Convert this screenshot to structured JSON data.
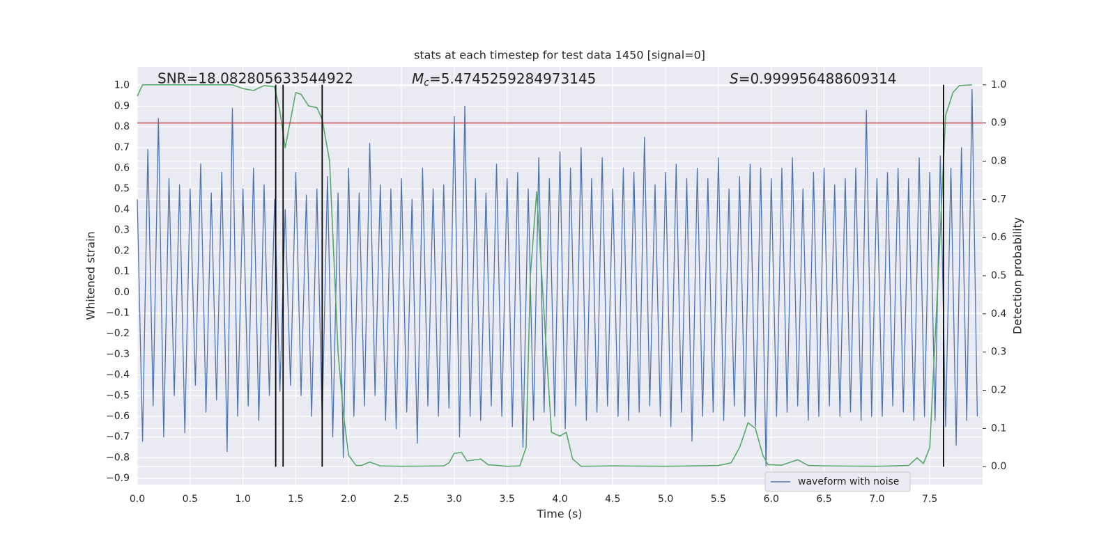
{
  "chart_data": {
    "type": "line",
    "title": "stats at each timestep for test data 1450 [signal=0]",
    "xlabel": "Time (s)",
    "ylabel": "Whitened strain",
    "y2label": "Detection probability",
    "annotations": {
      "snr": "SNR=18.082805633544922",
      "mc": {
        "symbol": "M",
        "subscript": "c",
        "text": "=5.4745259284973145"
      },
      "s": {
        "symbol": "S",
        "text": "=0.999956488609314"
      }
    },
    "xlim": [
      0,
      8
    ],
    "ylim": [
      -0.93,
      1.09
    ],
    "y2lim": [
      -0.047,
      1.047
    ],
    "xticks": [
      {
        "value": 0,
        "label": "0.0"
      },
      {
        "value": 0.5,
        "label": "0.5"
      },
      {
        "value": 1,
        "label": "1.0"
      },
      {
        "value": 1.5,
        "label": "1.5"
      },
      {
        "value": 2,
        "label": "2.0"
      },
      {
        "value": 2.5,
        "label": "2.5"
      },
      {
        "value": 3,
        "label": "3.0"
      },
      {
        "value": 3.5,
        "label": "3.5"
      },
      {
        "value": 4,
        "label": "4.0"
      },
      {
        "value": 4.5,
        "label": "4.5"
      },
      {
        "value": 5,
        "label": "5.0"
      },
      {
        "value": 5.5,
        "label": "5.5"
      },
      {
        "value": 6,
        "label": "6.0"
      },
      {
        "value": 6.5,
        "label": "6.5"
      },
      {
        "value": 7,
        "label": "7.0"
      },
      {
        "value": 7.5,
        "label": "7.5"
      }
    ],
    "yticks": [
      {
        "value": -0.9,
        "label": "−0.9"
      },
      {
        "value": -0.8,
        "label": "−0.8"
      },
      {
        "value": -0.7,
        "label": "−0.7"
      },
      {
        "value": -0.6,
        "label": "−0.6"
      },
      {
        "value": -0.5,
        "label": "−0.5"
      },
      {
        "value": -0.4,
        "label": "−0.4"
      },
      {
        "value": -0.3,
        "label": "−0.3"
      },
      {
        "value": -0.2,
        "label": "−0.2"
      },
      {
        "value": -0.1,
        "label": "−0.1"
      },
      {
        "value": 0,
        "label": "0.0"
      },
      0.1,
      0.2,
      0.3,
      0.4,
      0.5,
      0.6,
      0.7,
      0.8,
      0.9,
      {
        "value": 1,
        "label": "1.0"
      }
    ],
    "y2ticks": [
      {
        "value": 0,
        "label": "0.0"
      },
      0.1,
      0.2,
      0.3,
      0.4,
      0.5,
      0.6,
      0.7,
      0.8,
      0.9,
      {
        "value": 1,
        "label": "1.0"
      }
    ],
    "grid": true,
    "legend": "lower right",
    "series": [
      {
        "name": "waveform with noise",
        "color": "#4c72b0",
        "x": [
          0,
          0.05,
          0.1,
          0.15,
          0.2,
          0.25,
          0.3,
          0.35,
          0.4,
          0.45,
          0.5,
          0.55,
          0.6,
          0.65,
          0.7,
          0.75,
          0.8,
          0.85,
          0.9,
          0.95,
          1,
          1.05,
          1.1,
          1.15,
          1.2,
          1.25,
          1.3,
          1.35,
          1.4,
          1.45,
          1.5,
          1.55,
          1.6,
          1.65,
          1.7,
          1.75,
          1.8,
          1.85,
          1.9,
          1.95,
          2,
          2.05,
          2.1,
          2.15,
          2.2,
          2.25,
          2.3,
          2.35,
          2.4,
          2.45,
          2.5,
          2.55,
          2.6,
          2.65,
          2.7,
          2.75,
          2.8,
          2.85,
          2.9,
          2.95,
          3,
          3.05,
          3.1,
          3.15,
          3.2,
          3.25,
          3.3,
          3.35,
          3.4,
          3.45,
          3.5,
          3.55,
          3.6,
          3.65,
          3.7,
          3.75,
          3.8,
          3.85,
          3.9,
          3.95,
          4,
          4.05,
          4.1,
          4.15,
          4.2,
          4.25,
          4.3,
          4.35,
          4.4,
          4.45,
          4.5,
          4.55,
          4.6,
          4.65,
          4.7,
          4.75,
          4.8,
          4.85,
          4.9,
          4.95,
          5,
          5.05,
          5.1,
          5.15,
          5.2,
          5.25,
          5.3,
          5.35,
          5.4,
          5.45,
          5.5,
          5.55,
          5.6,
          5.65,
          5.7,
          5.75,
          5.8,
          5.85,
          5.9,
          5.95,
          6,
          6.05,
          6.1,
          6.15,
          6.2,
          6.25,
          6.3,
          6.35,
          6.4,
          6.45,
          6.5,
          6.55,
          6.6,
          6.65,
          6.7,
          6.75,
          6.8,
          6.85,
          6.9,
          6.95,
          7,
          7.05,
          7.1,
          7.15,
          7.2,
          7.25,
          7.3,
          7.35,
          7.4,
          7.45,
          7.5,
          7.55,
          7.6,
          7.65,
          7.7,
          7.75,
          7.8,
          7.85,
          7.9,
          7.95
        ],
        "values": [
          0.45,
          -0.72,
          0.69,
          -0.55,
          0.84,
          -0.7,
          0.55,
          -0.5,
          0.52,
          -0.68,
          0.5,
          -0.45,
          0.62,
          -0.58,
          0.48,
          -0.52,
          0.58,
          -0.77,
          0.89,
          -0.6,
          0.5,
          -0.55,
          0.6,
          -0.62,
          0.52,
          -0.5,
          0.45,
          -0.48,
          0.4,
          -0.45,
          0.58,
          -0.5,
          0.47,
          -0.6,
          0.5,
          -0.62,
          0.56,
          -0.7,
          0.48,
          -0.8,
          0.6,
          -0.6,
          0.48,
          -0.55,
          0.72,
          -0.5,
          0.52,
          -0.62,
          0.5,
          -0.66,
          0.55,
          -0.58,
          0.45,
          -0.73,
          0.6,
          -0.55,
          0.5,
          -0.6,
          0.52,
          -0.56,
          0.85,
          -0.7,
          0.9,
          -0.6,
          0.55,
          -0.62,
          0.48,
          -0.55,
          0.62,
          -0.6,
          0.55,
          -0.65,
          0.58,
          -0.75,
          0.5,
          -0.62,
          0.65,
          -0.58,
          0.55,
          -0.6,
          0.68,
          -0.66,
          0.6,
          -0.55,
          0.7,
          -0.62,
          0.55,
          -0.58,
          0.65,
          -0.55,
          0.5,
          -0.6,
          0.6,
          -0.62,
          0.58,
          -0.58,
          0.75,
          -0.55,
          0.52,
          -0.6,
          0.58,
          -0.65,
          0.62,
          -0.58,
          0.55,
          -0.72,
          0.6,
          -0.6,
          0.55,
          -0.58,
          0.65,
          -0.62,
          0.5,
          -0.55,
          0.56,
          -0.6,
          0.62,
          -0.65,
          0.6,
          -0.84,
          0.55,
          -0.6,
          0.6,
          -0.58,
          0.65,
          -0.55,
          0.5,
          -0.62,
          0.58,
          -0.6,
          0.6,
          -0.55,
          0.52,
          -0.6,
          0.55,
          -0.58,
          0.6,
          -0.62,
          0.88,
          -0.6,
          0.55,
          -0.6,
          0.58,
          -0.55,
          0.6,
          -0.58,
          0.55,
          -0.62,
          0.65,
          -0.6,
          0.58,
          -0.62,
          0.66,
          -0.65,
          0.6,
          -0.74,
          0.7,
          -0.62,
          0.98,
          -0.6
        ]
      },
      {
        "color": "#55a868",
        "axis": "y2",
        "x": [
          0,
          0.05,
          0.9,
          1.0,
          1.1,
          1.2,
          1.3,
          1.35,
          1.4,
          1.5,
          1.55,
          1.62,
          1.7,
          1.75,
          1.82,
          1.9,
          1.95,
          2.0,
          2.07,
          2.12,
          2.2,
          2.3,
          2.5,
          2.9,
          2.95,
          3.0,
          3.07,
          3.12,
          3.25,
          3.32,
          3.5,
          3.62,
          3.68,
          3.72,
          3.78,
          3.85,
          3.92,
          4.0,
          4.06,
          4.12,
          4.2,
          4.5,
          5.0,
          5.5,
          5.62,
          5.7,
          5.78,
          5.85,
          5.92,
          5.97,
          6.1,
          6.25,
          6.35,
          6.5,
          7.0,
          7.3,
          7.38,
          7.44,
          7.5,
          7.58,
          7.65,
          7.72,
          7.78,
          7.9
        ],
        "values": [
          0.97,
          1.0,
          1.0,
          0.99,
          0.985,
          0.998,
          0.995,
          0.93,
          0.835,
          0.98,
          0.975,
          0.945,
          0.94,
          0.91,
          0.8,
          0.3,
          0.14,
          0.03,
          0.003,
          0.003,
          0.012,
          0.002,
          0.001,
          0.002,
          0.01,
          0.035,
          0.037,
          0.015,
          0.02,
          0.005,
          0.001,
          0.002,
          0.05,
          0.5,
          0.72,
          0.4,
          0.09,
          0.08,
          0.09,
          0.02,
          0.001,
          0.002,
          0.001,
          0.003,
          0.01,
          0.05,
          0.115,
          0.1,
          0.03,
          0.005,
          0.004,
          0.018,
          0.003,
          0.002,
          0.001,
          0.003,
          0.023,
          0.008,
          0.05,
          0.5,
          0.92,
          0.98,
          0.998,
          1.0
        ]
      }
    ],
    "hline": {
      "value": 0.9,
      "axis": "y2",
      "color": "#c44e52"
    },
    "vlines": {
      "x": [
        1.31,
        1.38,
        1.75,
        7.63
      ],
      "span": [
        0,
        1
      ],
      "axis": "y2",
      "color": "#000000"
    }
  }
}
